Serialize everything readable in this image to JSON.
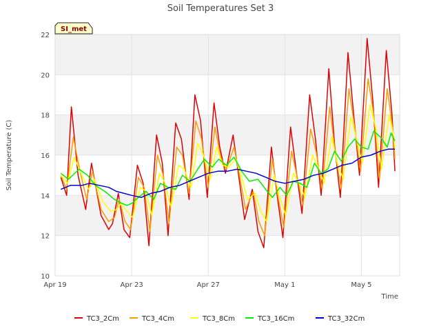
{
  "chart_data": {
    "type": "line",
    "title": "Soil Temperatures Set 3",
    "xlabel": "Time",
    "ylabel": "Soil Temperature (C)",
    "site_badge": "SI_met",
    "ylim": [
      10,
      22
    ],
    "xlim": [
      0,
      18
    ],
    "x_ticks": [
      {
        "label": "Apr 19",
        "day": 0
      },
      {
        "label": "Apr 23",
        "day": 4
      },
      {
        "label": "Apr 27",
        "day": 8
      },
      {
        "label": "May 1",
        "day": 12
      },
      {
        "label": "May 5",
        "day": 16
      }
    ],
    "y_ticks": [
      10,
      12,
      14,
      16,
      18,
      20,
      22
    ],
    "grid": true,
    "legend_position": "bottom",
    "series": [
      {
        "name": "TC3_2Cm",
        "color": "#dd0000",
        "points": [
          [
            0.3,
            14.9
          ],
          [
            0.6,
            14.0
          ],
          [
            0.85,
            18.4
          ],
          [
            1.2,
            15.0
          ],
          [
            1.6,
            13.3
          ],
          [
            1.9,
            15.6
          ],
          [
            2.4,
            13.0
          ],
          [
            2.8,
            12.3
          ],
          [
            3.0,
            12.6
          ],
          [
            3.3,
            14.1
          ],
          [
            3.6,
            12.3
          ],
          [
            3.9,
            11.9
          ],
          [
            4.3,
            15.5
          ],
          [
            4.6,
            14.6
          ],
          [
            4.9,
            11.5
          ],
          [
            5.3,
            17.0
          ],
          [
            5.6,
            15.6
          ],
          [
            5.9,
            12.0
          ],
          [
            6.3,
            17.6
          ],
          [
            6.6,
            16.8
          ],
          [
            7.0,
            13.8
          ],
          [
            7.3,
            19.0
          ],
          [
            7.6,
            17.7
          ],
          [
            7.95,
            13.9
          ],
          [
            8.3,
            18.6
          ],
          [
            8.6,
            16.4
          ],
          [
            8.9,
            15.1
          ],
          [
            9.3,
            17.0
          ],
          [
            9.6,
            14.9
          ],
          [
            9.9,
            12.8
          ],
          [
            10.3,
            14.3
          ],
          [
            10.6,
            12.2
          ],
          [
            10.9,
            11.4
          ],
          [
            11.3,
            16.4
          ],
          [
            11.6,
            14.0
          ],
          [
            11.9,
            11.9
          ],
          [
            12.3,
            17.4
          ],
          [
            12.6,
            15.2
          ],
          [
            12.9,
            13.1
          ],
          [
            13.3,
            19.0
          ],
          [
            13.6,
            16.8
          ],
          [
            13.9,
            14.0
          ],
          [
            14.3,
            20.3
          ],
          [
            14.6,
            16.5
          ],
          [
            14.9,
            13.9
          ],
          [
            15.3,
            21.1
          ],
          [
            15.6,
            18.0
          ],
          [
            15.9,
            15.0
          ],
          [
            16.3,
            21.8
          ],
          [
            16.6,
            18.7
          ],
          [
            16.9,
            14.4
          ],
          [
            17.3,
            21.2
          ],
          [
            17.6,
            18.0
          ],
          [
            17.75,
            15.2
          ]
        ]
      },
      {
        "name": "TC3_4Cm",
        "color": "#ff9900",
        "points": [
          [
            0.3,
            15.0
          ],
          [
            0.6,
            14.3
          ],
          [
            0.95,
            16.9
          ],
          [
            1.3,
            15.2
          ],
          [
            1.65,
            13.8
          ],
          [
            1.95,
            15.2
          ],
          [
            2.4,
            13.3
          ],
          [
            2.8,
            12.7
          ],
          [
            3.1,
            12.9
          ],
          [
            3.35,
            13.8
          ],
          [
            3.65,
            12.7
          ],
          [
            3.95,
            12.3
          ],
          [
            4.35,
            14.9
          ],
          [
            4.65,
            14.4
          ],
          [
            4.95,
            12.2
          ],
          [
            5.35,
            16.0
          ],
          [
            5.65,
            15.0
          ],
          [
            5.95,
            12.6
          ],
          [
            6.35,
            16.4
          ],
          [
            6.65,
            16.0
          ],
          [
            7.0,
            14.1
          ],
          [
            7.35,
            17.7
          ],
          [
            7.65,
            16.8
          ],
          [
            8.0,
            14.4
          ],
          [
            8.35,
            17.4
          ],
          [
            8.65,
            15.9
          ],
          [
            8.95,
            15.3
          ],
          [
            9.35,
            16.4
          ],
          [
            9.65,
            14.9
          ],
          [
            9.95,
            13.3
          ],
          [
            10.35,
            14.2
          ],
          [
            10.65,
            12.7
          ],
          [
            10.95,
            12.0
          ],
          [
            11.35,
            15.8
          ],
          [
            11.65,
            13.9
          ],
          [
            11.95,
            12.4
          ],
          [
            12.35,
            16.2
          ],
          [
            12.65,
            14.9
          ],
          [
            12.95,
            13.5
          ],
          [
            13.35,
            17.3
          ],
          [
            13.65,
            16.1
          ],
          [
            13.95,
            14.3
          ],
          [
            14.35,
            18.4
          ],
          [
            14.65,
            16.0
          ],
          [
            14.95,
            14.3
          ],
          [
            15.35,
            19.3
          ],
          [
            15.65,
            17.4
          ],
          [
            15.95,
            15.2
          ],
          [
            16.35,
            19.8
          ],
          [
            16.65,
            18.0
          ],
          [
            16.95,
            14.8
          ],
          [
            17.35,
            19.3
          ],
          [
            17.65,
            17.2
          ],
          [
            17.75,
            15.8
          ]
        ]
      },
      {
        "name": "TC3_8Cm",
        "color": "#ffff00",
        "points": [
          [
            0.3,
            15.0
          ],
          [
            0.65,
            14.6
          ],
          [
            1.0,
            15.9
          ],
          [
            1.35,
            15.1
          ],
          [
            1.75,
            14.3
          ],
          [
            2.05,
            14.8
          ],
          [
            2.5,
            13.7
          ],
          [
            2.9,
            13.2
          ],
          [
            3.2,
            13.3
          ],
          [
            3.45,
            13.6
          ],
          [
            3.75,
            13.2
          ],
          [
            4.05,
            12.9
          ],
          [
            4.45,
            14.4
          ],
          [
            4.75,
            14.2
          ],
          [
            5.05,
            13.0
          ],
          [
            5.45,
            15.1
          ],
          [
            5.75,
            14.6
          ],
          [
            6.05,
            13.4
          ],
          [
            6.45,
            15.5
          ],
          [
            6.75,
            15.3
          ],
          [
            7.1,
            14.4
          ],
          [
            7.45,
            16.6
          ],
          [
            7.75,
            16.0
          ],
          [
            8.1,
            14.8
          ],
          [
            8.45,
            16.4
          ],
          [
            8.75,
            15.5
          ],
          [
            9.05,
            15.4
          ],
          [
            9.45,
            15.8
          ],
          [
            9.75,
            14.9
          ],
          [
            10.05,
            13.8
          ],
          [
            10.45,
            14.1
          ],
          [
            10.75,
            13.2
          ],
          [
            11.05,
            12.7
          ],
          [
            11.45,
            15.0
          ],
          [
            11.75,
            13.9
          ],
          [
            12.05,
            13.0
          ],
          [
            12.45,
            15.1
          ],
          [
            12.75,
            14.6
          ],
          [
            13.05,
            13.9
          ],
          [
            13.45,
            16.0
          ],
          [
            13.75,
            15.4
          ],
          [
            14.05,
            14.6
          ],
          [
            14.45,
            16.9
          ],
          [
            14.75,
            15.6
          ],
          [
            15.05,
            14.8
          ],
          [
            15.45,
            17.9
          ],
          [
            15.75,
            16.8
          ],
          [
            16.05,
            15.6
          ],
          [
            16.45,
            18.5
          ],
          [
            16.75,
            17.4
          ],
          [
            17.05,
            15.3
          ],
          [
            17.45,
            18.0
          ],
          [
            17.7,
            16.9
          ],
          [
            17.75,
            16.3
          ]
        ]
      },
      {
        "name": "TC3_16Cm",
        "color": "#00ee00",
        "points": [
          [
            0.3,
            15.1
          ],
          [
            0.7,
            14.8
          ],
          [
            1.25,
            15.3
          ],
          [
            1.7,
            15.0
          ],
          [
            2.1,
            14.5
          ],
          [
            2.6,
            14.2
          ],
          [
            3.1,
            13.8
          ],
          [
            3.5,
            13.6
          ],
          [
            3.75,
            13.5
          ],
          [
            4.0,
            13.6
          ],
          [
            4.35,
            13.9
          ],
          [
            4.75,
            14.2
          ],
          [
            5.15,
            13.8
          ],
          [
            5.5,
            14.6
          ],
          [
            5.9,
            14.4
          ],
          [
            6.3,
            14.3
          ],
          [
            6.65,
            15.0
          ],
          [
            7.05,
            14.7
          ],
          [
            7.45,
            15.3
          ],
          [
            7.8,
            15.8
          ],
          [
            8.2,
            15.4
          ],
          [
            8.55,
            15.8
          ],
          [
            8.95,
            15.5
          ],
          [
            9.35,
            15.9
          ],
          [
            9.75,
            15.2
          ],
          [
            10.15,
            14.7
          ],
          [
            10.6,
            14.8
          ],
          [
            11.0,
            14.3
          ],
          [
            11.35,
            13.9
          ],
          [
            11.75,
            14.4
          ],
          [
            12.1,
            14.0
          ],
          [
            12.45,
            14.7
          ],
          [
            12.8,
            14.6
          ],
          [
            13.15,
            14.4
          ],
          [
            13.55,
            15.6
          ],
          [
            13.9,
            15.1
          ],
          [
            14.25,
            15.3
          ],
          [
            14.6,
            16.2
          ],
          [
            14.95,
            15.7
          ],
          [
            15.3,
            16.4
          ],
          [
            15.65,
            16.8
          ],
          [
            16.0,
            16.4
          ],
          [
            16.35,
            16.3
          ],
          [
            16.65,
            17.2
          ],
          [
            17.0,
            16.9
          ],
          [
            17.35,
            16.4
          ],
          [
            17.55,
            17.1
          ],
          [
            17.75,
            16.7
          ]
        ]
      },
      {
        "name": "TC3_32Cm",
        "color": "#0000cc",
        "points": [
          [
            0.3,
            14.3
          ],
          [
            0.8,
            14.5
          ],
          [
            1.4,
            14.5
          ],
          [
            1.8,
            14.6
          ],
          [
            2.3,
            14.5
          ],
          [
            2.8,
            14.4
          ],
          [
            3.2,
            14.2
          ],
          [
            3.6,
            14.1
          ],
          [
            4.0,
            14.0
          ],
          [
            4.5,
            13.9
          ],
          [
            5.0,
            14.1
          ],
          [
            5.5,
            14.2
          ],
          [
            6.0,
            14.4
          ],
          [
            6.5,
            14.5
          ],
          [
            7.0,
            14.7
          ],
          [
            7.5,
            14.9
          ],
          [
            8.0,
            15.1
          ],
          [
            8.5,
            15.2
          ],
          [
            9.0,
            15.2
          ],
          [
            9.5,
            15.3
          ],
          [
            10.0,
            15.2
          ],
          [
            10.5,
            15.1
          ],
          [
            11.0,
            14.9
          ],
          [
            11.5,
            14.7
          ],
          [
            12.0,
            14.6
          ],
          [
            12.5,
            14.7
          ],
          [
            13.0,
            14.8
          ],
          [
            13.5,
            15.0
          ],
          [
            14.0,
            15.1
          ],
          [
            14.5,
            15.3
          ],
          [
            15.0,
            15.5
          ],
          [
            15.5,
            15.6
          ],
          [
            16.0,
            15.9
          ],
          [
            16.5,
            16.0
          ],
          [
            17.0,
            16.2
          ],
          [
            17.4,
            16.3
          ],
          [
            17.75,
            16.3
          ]
        ]
      }
    ]
  }
}
